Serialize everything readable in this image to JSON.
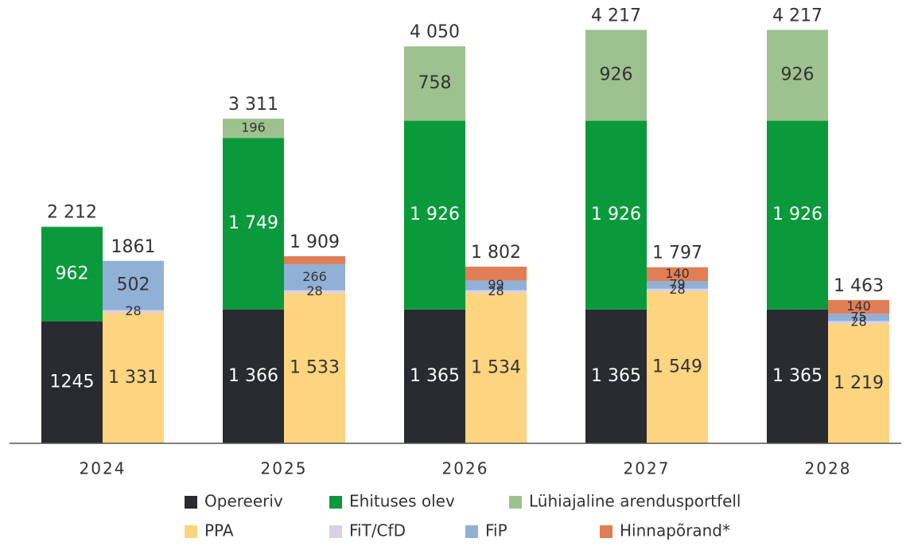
{
  "chart_data": {
    "type": "stacked_bar",
    "categories": [
      "2024",
      "2025",
      "2026",
      "2027",
      "2028"
    ],
    "ylim": [
      0,
      4400
    ],
    "series": [
      {
        "name": "Opereeriv",
        "stack": "a",
        "color": "#2a2b30",
        "values": [
          1245,
          1366,
          1365,
          1365,
          1365
        ],
        "value_labels": [
          "1245",
          "1 366",
          "1 365",
          "1 365",
          "1 365"
        ]
      },
      {
        "name": "Ehituses olev",
        "stack": "a",
        "color": "#0a9a3c",
        "values": [
          962,
          1749,
          1926,
          1926,
          1926
        ],
        "value_labels": [
          "962",
          "1 749",
          "1 926",
          "1 926",
          "1 926"
        ]
      },
      {
        "name": "Lühiajaline arendusportfell",
        "stack": "a",
        "color": "#9dc18f",
        "values": [
          5,
          196,
          758,
          926,
          926
        ],
        "value_labels": [
          null,
          "196",
          "758",
          "926",
          "926"
        ]
      },
      {
        "name": "PPA",
        "stack": "b",
        "color": "#fdd47f",
        "values": [
          1331,
          1533,
          1534,
          1549,
          1219
        ],
        "value_labels": [
          "1 331",
          "1 533",
          "1 534",
          "1 549",
          "1 219"
        ]
      },
      {
        "name": "FiT/CfD",
        "stack": "b",
        "color": "#d9d2e6",
        "values": [
          28,
          28,
          28,
          28,
          28
        ],
        "value_labels": [
          "28",
          "28",
          "28",
          "28",
          "28"
        ]
      },
      {
        "name": "FiP",
        "stack": "b",
        "color": "#91b0d6",
        "values": [
          502,
          266,
          99,
          79,
          75
        ],
        "value_labels": [
          "502",
          "266",
          "99",
          "79",
          "75"
        ]
      },
      {
        "name": "Hinnapõrand*",
        "stack": "b",
        "color": "#e07f56",
        "values": [
          null,
          82,
          141,
          140,
          140
        ],
        "value_labels": [
          null,
          null,
          null,
          "140",
          "140"
        ]
      }
    ],
    "totals": {
      "a": {
        "values": [
          2212,
          3311,
          4050,
          4217,
          4217
        ],
        "value_labels": [
          "2 212",
          "3 311",
          "4 050",
          "4 217",
          "4 217"
        ]
      },
      "b": {
        "values": [
          1861,
          1909,
          1802,
          1797,
          1463
        ],
        "value_labels": [
          "1861",
          "1 909",
          "1 802",
          "1 797",
          "1 463"
        ]
      }
    },
    "legend": "bottom"
  }
}
